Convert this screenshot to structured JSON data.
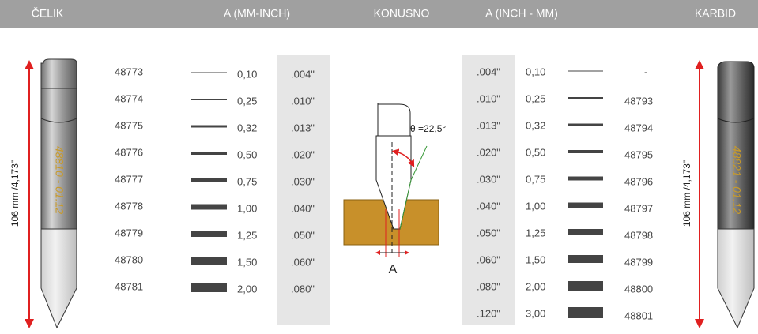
{
  "header": [
    "ČELIK",
    "A (MM-INCH)",
    "KONUSNO",
    "A (INCH - MM)",
    "KARBID"
  ],
  "left_table": {
    "rows": [
      [
        "48773",
        "0,10",
        ".004\""
      ],
      [
        "48774",
        "0,25",
        ".010\""
      ],
      [
        "48775",
        "0,32",
        ".013\""
      ],
      [
        "48776",
        "0,50",
        ".020\""
      ],
      [
        "48777",
        "0,75",
        ".030\""
      ],
      [
        "48778",
        "1,00",
        ".040\""
      ],
      [
        "48779",
        "1,25",
        ".050\""
      ],
      [
        "48780",
        "1,50",
        ".060\""
      ],
      [
        "48781",
        "2,00",
        ".080\""
      ]
    ]
  },
  "right_table": {
    "rows": [
      [
        ".004\"",
        "0,10",
        "-"
      ],
      [
        ".010\"",
        "0,25",
        "48793"
      ],
      [
        ".013\"",
        "0,32",
        "48794"
      ],
      [
        ".020\"",
        "0,50",
        "48795"
      ],
      [
        ".030\"",
        "0,75",
        "48796"
      ],
      [
        ".040\"",
        "1,00",
        "48797"
      ],
      [
        ".050\"",
        "1,25",
        "48798"
      ],
      [
        ".060\"",
        "1,50",
        "48799"
      ],
      [
        ".080\"",
        "2,00",
        "48800"
      ],
      [
        ".120\"",
        "3,00",
        "48801"
      ]
    ]
  },
  "left_tool": {
    "label": "48810 - 01.12",
    "length": "106 mm /4,173\""
  },
  "right_tool": {
    "label": "48821 - 01.12",
    "length": "106 mm /4,173\""
  },
  "diagram": {
    "angle": "θ =22,5°",
    "dimension": "A"
  }
}
